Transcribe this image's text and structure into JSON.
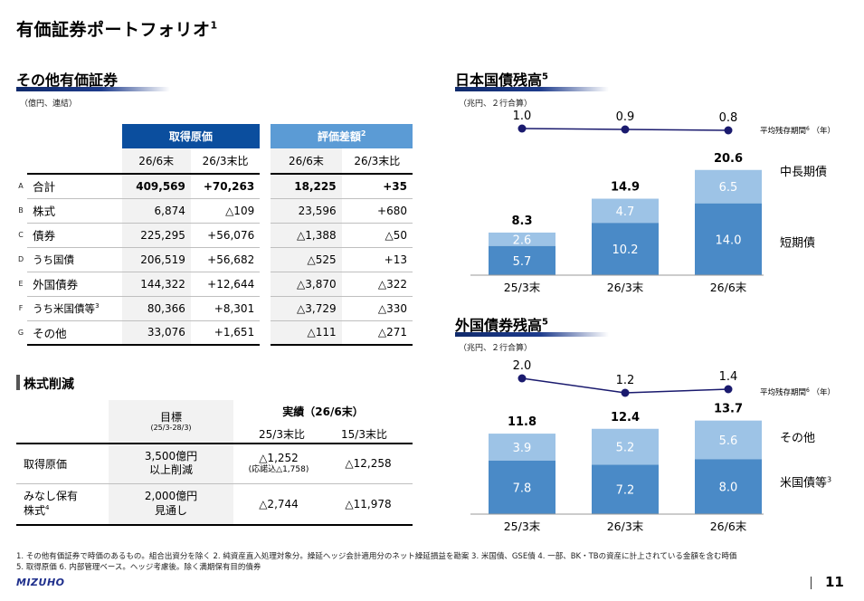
{
  "page": {
    "title": "有価証券ポートフォリオ",
    "title_sup": "1",
    "page_number": "11",
    "logo_text": "MIZUHO"
  },
  "other_securities": {
    "heading": "その他有価証券",
    "unit": "（億円、連結）",
    "group_headers": {
      "cost": "取得原価",
      "valuation": "評価差額",
      "valuation_sup": "2"
    },
    "sub_headers": [
      "26/6末",
      "26/3末比",
      "26/6末",
      "26/3末比"
    ],
    "rows": [
      {
        "letter": "A",
        "label": "合計",
        "label_sup": "",
        "values": [
          "409,569",
          "+70,263",
          "18,225",
          "+35"
        ]
      },
      {
        "letter": "B",
        "label": "株式",
        "label_sup": "",
        "values": [
          "6,874",
          "△109",
          "23,596",
          "+680"
        ]
      },
      {
        "letter": "C",
        "label": "債券",
        "label_sup": "",
        "values": [
          "225,295",
          "+56,076",
          "△1,388",
          "△50"
        ]
      },
      {
        "letter": "D",
        "label": "うち国債",
        "label_sup": "",
        "values": [
          "206,519",
          "+56,682",
          "△525",
          "+13"
        ]
      },
      {
        "letter": "E",
        "label": "外国債券",
        "label_sup": "",
        "values": [
          "144,322",
          "+12,644",
          "△3,870",
          "△322"
        ]
      },
      {
        "letter": "F",
        "label": "うち米国債等",
        "label_sup": "3",
        "values": [
          "80,366",
          "+8,301",
          "△3,729",
          "△330"
        ]
      },
      {
        "letter": "G",
        "label": "その他",
        "label_sup": "",
        "values": [
          "33,076",
          "+1,651",
          "△111",
          "△271"
        ]
      }
    ]
  },
  "stock_reduction": {
    "heading": "株式削減",
    "target_header": "目標",
    "target_sub": "(25/3-28/3)",
    "actual_header": "実績（26/6末）",
    "actual_sub": [
      "25/3末比",
      "15/3末比"
    ],
    "rows": [
      {
        "label": "取得原価",
        "label2": "",
        "label_sup": "",
        "target": "3,500億円",
        "target2": "以上削減",
        "v1": "△1,252",
        "v1_note": "(応諾込△1,758)",
        "v2": "△12,258"
      },
      {
        "label": "みなし保有",
        "label2": "株式",
        "label_sup": "4",
        "target": "2,000億円",
        "target2": "見通し",
        "v1": "△2,744",
        "v1_note": "",
        "v2": "△11,978"
      }
    ]
  },
  "footnotes": [
    "1. その他有価証券で時価のあるもの。組合出資分を除く 2. 純資産直入処理対象分。繰延ヘッジ会計適用分のネット繰延損益を勘案 3. 米国債、GSE債 4. 一部、BK・TBの資産に計上されている金額を含む時価",
    "5. 取得原価 6. 内部管理ベース。ヘッジ考慮後。除く満期保有目的債券"
  ],
  "chart_data": [
    {
      "type": "bar",
      "title": "日本国債残高",
      "title_sup": "5",
      "unit": "（兆円、２行合算）",
      "categories": [
        "25/3末",
        "26/3末",
        "26/6末"
      ],
      "series": [
        {
          "name": "短期債",
          "values": [
            5.7,
            10.2,
            14.0
          ],
          "color": "#4a8ac7"
        },
        {
          "name": "中長期債",
          "values": [
            2.6,
            4.7,
            6.5
          ],
          "color": "#9dc3e6"
        }
      ],
      "totals": [
        "8.3",
        "14.9",
        "20.6"
      ],
      "segment_labels": [
        [
          "5.7",
          "10.2",
          "14.0"
        ],
        [
          "2.6",
          "4.7",
          "6.5"
        ]
      ],
      "duration": {
        "label": "平均残存期間",
        "label_sup": "6",
        "label_unit": "（年）",
        "values": [
          1.0,
          0.9,
          0.8
        ],
        "labels": [
          "1.0",
          "0.9",
          "0.8"
        ]
      },
      "ylim": [
        0,
        21
      ]
    },
    {
      "type": "bar",
      "title": "外国債券残高",
      "title_sup": "5",
      "unit": "（兆円、２行合算）",
      "categories": [
        "25/3末",
        "26/3末",
        "26/6末"
      ],
      "series": [
        {
          "name": "米国債等",
          "name_sup": "3",
          "values": [
            7.8,
            7.2,
            8.0
          ],
          "color": "#4a8ac7"
        },
        {
          "name": "その他",
          "values": [
            3.9,
            5.2,
            5.6
          ],
          "color": "#9dc3e6"
        }
      ],
      "totals": [
        "11.8",
        "12.4",
        "13.7"
      ],
      "segment_labels": [
        [
          "7.8",
          "7.2",
          "8.0"
        ],
        [
          "3.9",
          "5.2",
          "5.6"
        ]
      ],
      "duration": {
        "label": "平均残存期間",
        "label_sup": "6",
        "label_unit": "（年）",
        "values": [
          2.0,
          1.2,
          1.4
        ],
        "labels": [
          "2.0",
          "1.2",
          "1.4"
        ]
      },
      "ylim": [
        0,
        14
      ]
    }
  ],
  "colors": {
    "navy": "#0b4e9e",
    "light_blue": "#5b9bd5",
    "dot": "#1a1a6e",
    "logo": "#1f2f8c"
  }
}
